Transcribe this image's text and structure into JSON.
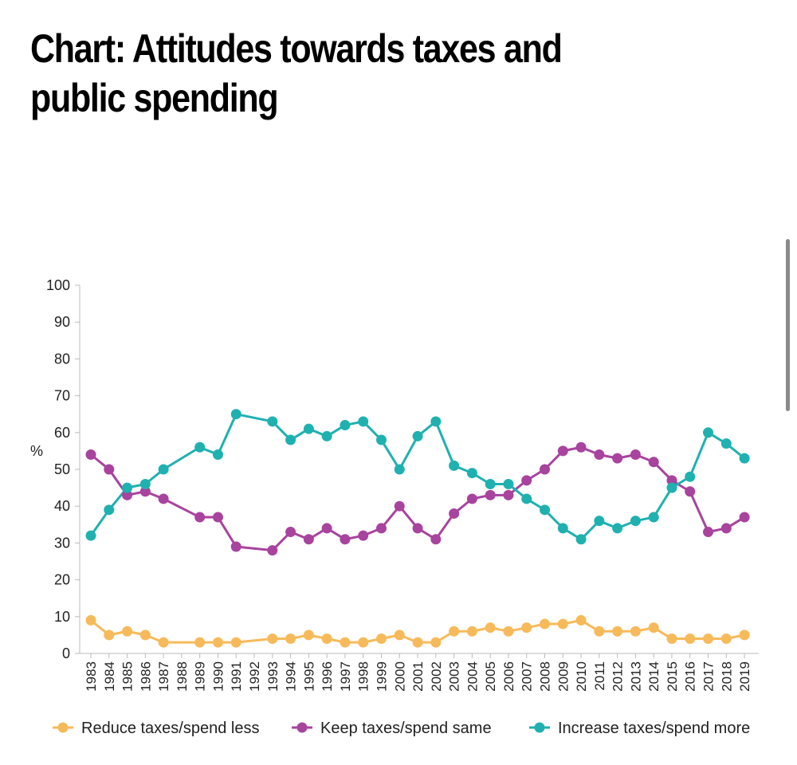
{
  "page": {
    "title": "Chart: Attitudes towards taxes and public spending"
  },
  "chart_data": {
    "type": "line",
    "title": "Chart: Attitudes towards taxes and public spending",
    "xlabel": "",
    "ylabel": "%",
    "ylim": [
      0,
      100
    ],
    "yticks": [
      0,
      10,
      20,
      30,
      40,
      50,
      60,
      70,
      80,
      90,
      100
    ],
    "categories": [
      "1983",
      "1984",
      "1985",
      "1986",
      "1987",
      "1988",
      "1989",
      "1990",
      "1991",
      "1992",
      "1993",
      "1994",
      "1995",
      "1996",
      "1997",
      "1998",
      "1999",
      "2000",
      "2001",
      "2002",
      "2003",
      "2004",
      "2005",
      "2006",
      "2007",
      "2008",
      "2009",
      "2010",
      "2011",
      "2012",
      "2013",
      "2014",
      "2015",
      "2016",
      "2017",
      "2018",
      "2019"
    ],
    "legend_position": "bottom",
    "series": [
      {
        "name": "Reduce taxes/spend less",
        "color": "#F7BA5A",
        "values": [
          9,
          5,
          6,
          5,
          3,
          null,
          3,
          3,
          3,
          null,
          4,
          4,
          5,
          4,
          3,
          3,
          4,
          5,
          3,
          3,
          6,
          6,
          7,
          6,
          7,
          8,
          8,
          9,
          6,
          6,
          6,
          7,
          4,
          4,
          4,
          4,
          5
        ]
      },
      {
        "name": "Keep taxes/spend same",
        "color": "#A8439E",
        "values": [
          54,
          50,
          43,
          44,
          42,
          null,
          37,
          37,
          29,
          null,
          28,
          33,
          31,
          34,
          31,
          32,
          34,
          40,
          34,
          31,
          38,
          42,
          43,
          43,
          47,
          50,
          55,
          56,
          54,
          53,
          54,
          52,
          47,
          44,
          33,
          34,
          37
        ]
      },
      {
        "name": "Increase taxes/spend more",
        "color": "#1FB1B0",
        "values": [
          32,
          39,
          45,
          46,
          50,
          null,
          56,
          54,
          65,
          null,
          63,
          58,
          61,
          59,
          62,
          63,
          58,
          50,
          59,
          63,
          51,
          49,
          46,
          46,
          42,
          39,
          34,
          31,
          36,
          34,
          36,
          37,
          45,
          48,
          60,
          57,
          53
        ]
      }
    ]
  }
}
